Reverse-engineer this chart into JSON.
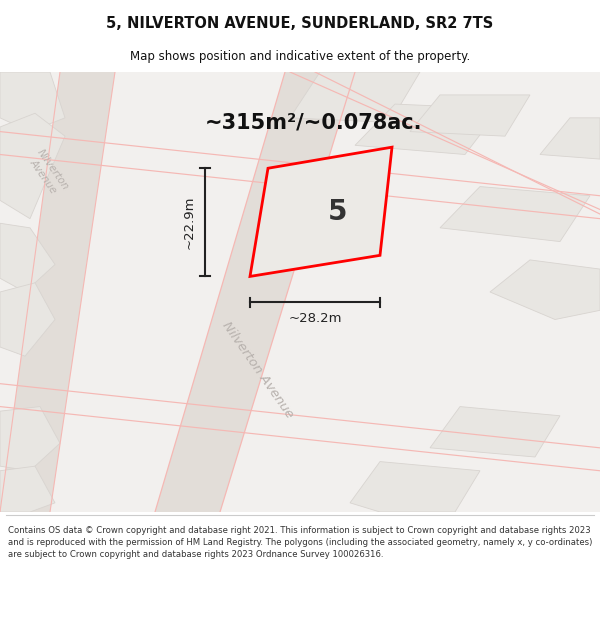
{
  "title": "5, NILVERTON AVENUE, SUNDERLAND, SR2 7TS",
  "subtitle": "Map shows position and indicative extent of the property.",
  "area_text": "~315m²/~0.078ac.",
  "width_label": "~28.2m",
  "height_label": "~22.9m",
  "plot_number": "5",
  "footer": "Contains OS data © Crown copyright and database right 2021. This information is subject to Crown copyright and database rights 2023 and is reproduced with the permission of HM Land Registry. The polygons (including the associated geometry, namely x, y co-ordinates) are subject to Crown copyright and database rights 2023 Ordnance Survey 100026316.",
  "bg_color": "#f2f0ee",
  "road_fill": "#e2ddd8",
  "road_line": "#f5b8b4",
  "building_fill": "#e8e6e2",
  "building_edge": "#d8d4d0",
  "prop_fill": "#eceae6",
  "prop_edge": "#ff0000",
  "dim_color": "#222222",
  "street_color": "#b8b2ae",
  "title_color": "#111111",
  "footer_color": "#333333",
  "white": "#ffffff",
  "sep_color": "#cccccc"
}
